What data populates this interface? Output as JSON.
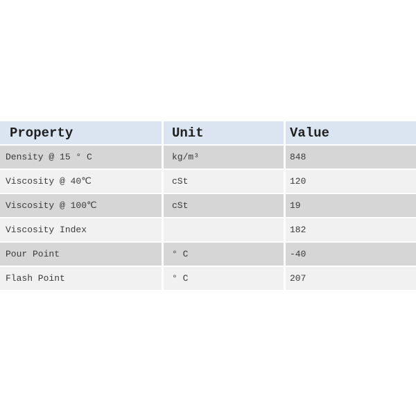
{
  "table": {
    "columns": [
      {
        "label": "Property"
      },
      {
        "label": "Unit"
      },
      {
        "label": "Value"
      }
    ],
    "rows": [
      {
        "property": "Density @ 15 ° C",
        "unit": "kg/m³",
        "value": "848"
      },
      {
        "property": "Viscosity @ 40℃",
        "unit": "cSt",
        "value": "120"
      },
      {
        "property": "Viscosity @ 100℃",
        "unit": "cSt",
        "value": "19"
      },
      {
        "property": "Viscosity Index",
        "unit": "",
        "value": "182"
      },
      {
        "property": "Pour Point",
        "unit": "° C",
        "value": "-40"
      },
      {
        "property": "Flash Point",
        "unit": "° C",
        "value": "207"
      }
    ],
    "colors": {
      "header_bg": "#dbe5f1",
      "header_text": "#1f1f1f",
      "row_dark": "#d6d6d6",
      "row_light": "#f1f1f1",
      "text": "#3a3a3a",
      "separator": "#ffffff"
    }
  }
}
